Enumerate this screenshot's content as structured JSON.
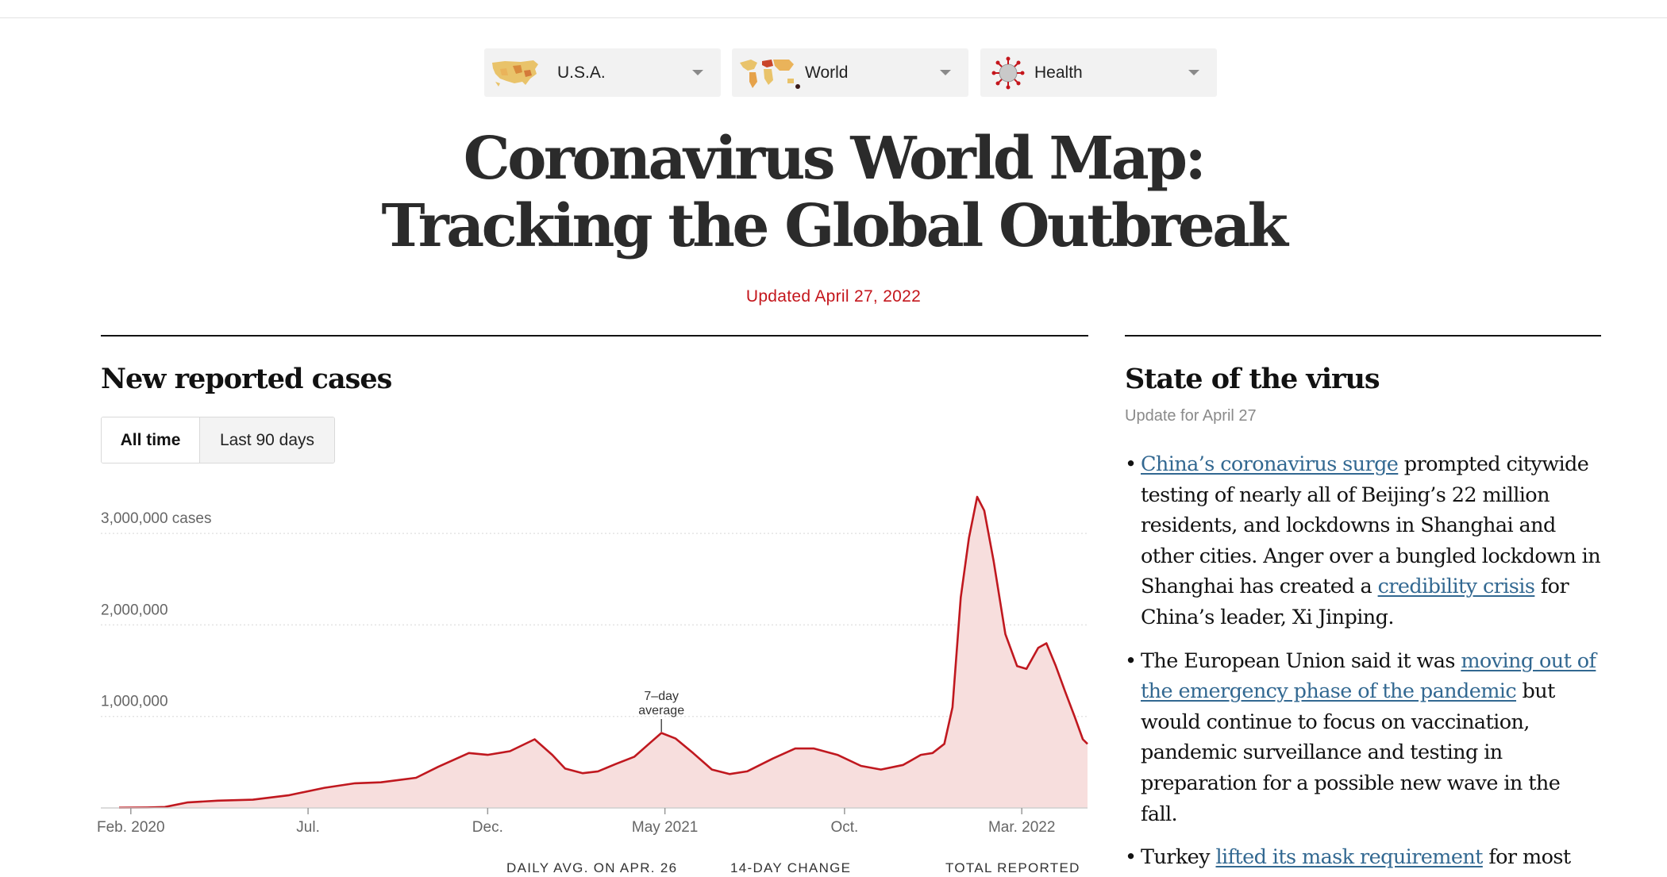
{
  "nav": {
    "items": [
      {
        "label": "U.S.A.",
        "icon": "usa-map-icon"
      },
      {
        "label": "World",
        "icon": "world-map-icon"
      },
      {
        "label": "Health",
        "icon": "virus-icon"
      }
    ]
  },
  "headline": {
    "line1": "Coronavirus World Map:",
    "line2": "Tracking the Global Outbreak"
  },
  "updated": "Updated April 27, 2022",
  "colors": {
    "accent_red": "#c4161c",
    "chart_line": "#c0181f",
    "chart_fill": "#f7dedd",
    "link_blue": "#326891"
  },
  "cases_section": {
    "title": "New reported cases",
    "tabs": [
      "All time",
      "Last 90 days"
    ],
    "active_tab": "All time",
    "footer_labels": [
      "DAILY AVG. ON APR. 26",
      "14-DAY CHANGE",
      "TOTAL REPORTED"
    ]
  },
  "chart_data": {
    "type": "area",
    "title": "",
    "xlabel": "",
    "ylabel": "",
    "ylim": [
      0,
      3400000
    ],
    "yticks": [
      {
        "value": 1000000,
        "label": "1,000,000"
      },
      {
        "value": 2000000,
        "label": "2,000,000"
      },
      {
        "value": 3000000,
        "label": "3,000,000 cases"
      }
    ],
    "xticks": [
      {
        "date": "2020-02-01",
        "label": "Feb. 2020"
      },
      {
        "date": "2020-07-01",
        "label": "Jul."
      },
      {
        "date": "2020-12-01",
        "label": "Dec."
      },
      {
        "date": "2021-05-01",
        "label": "May 2021"
      },
      {
        "date": "2021-10-01",
        "label": "Oct."
      },
      {
        "date": "2022-03-01",
        "label": "Mar. 2022"
      }
    ],
    "grid": true,
    "annotation": {
      "text_line1": "7–day",
      "text_line2": "average",
      "date": "2021-04-28"
    },
    "series": [
      {
        "x": [
          "2020-01-22",
          "2020-02-15",
          "2020-03-01",
          "2020-03-20",
          "2020-04-15",
          "2020-05-15",
          "2020-06-15",
          "2020-07-15",
          "2020-08-10",
          "2020-09-01",
          "2020-10-01",
          "2020-10-20",
          "2020-11-15",
          "2020-12-01",
          "2020-12-20",
          "2021-01-10",
          "2021-01-25",
          "2021-02-05",
          "2021-02-20",
          "2021-03-05",
          "2021-03-20",
          "2021-04-05",
          "2021-04-20",
          "2021-04-28",
          "2021-05-10",
          "2021-05-25",
          "2021-06-10",
          "2021-06-25",
          "2021-07-10",
          "2021-08-01",
          "2021-08-20",
          "2021-09-05",
          "2021-09-25",
          "2021-10-15",
          "2021-11-01",
          "2021-11-20",
          "2021-12-05",
          "2021-12-15",
          "2021-12-25",
          "2022-01-01",
          "2022-01-08",
          "2022-01-15",
          "2022-01-22",
          "2022-01-28",
          "2022-02-05",
          "2022-02-15",
          "2022-02-25",
          "2022-03-05",
          "2022-03-15",
          "2022-03-22",
          "2022-03-30",
          "2022-04-07",
          "2022-04-15",
          "2022-04-22",
          "2022-04-26"
        ],
        "values": [
          3000,
          5000,
          10000,
          60000,
          80000,
          90000,
          140000,
          220000,
          270000,
          280000,
          330000,
          450000,
          600000,
          580000,
          620000,
          750000,
          580000,
          430000,
          380000,
          400000,
          480000,
          560000,
          730000,
          820000,
          760000,
          600000,
          420000,
          370000,
          400000,
          540000,
          650000,
          650000,
          580000,
          460000,
          420000,
          470000,
          580000,
          600000,
          700000,
          1100000,
          2300000,
          2950000,
          3400000,
          3250000,
          2700000,
          1900000,
          1550000,
          1520000,
          1750000,
          1800000,
          1550000,
          1270000,
          1000000,
          750000,
          700000
        ]
      }
    ]
  },
  "state_section": {
    "title": "State of the virus",
    "update_for": "Update for April 27",
    "bullets": [
      {
        "parts": [
          {
            "text": "China’s coronavirus surge",
            "link": true
          },
          {
            "text": " prompted citywide testing of nearly all of Beijing’s 22 million residents, and lockdowns in Shanghai and other cities. Anger over a bungled lockdown in Shanghai has created a ",
            "link": false
          },
          {
            "text": "credibility crisis",
            "link": true
          },
          {
            "text": " for China’s leader, Xi Jinping.",
            "link": false
          }
        ]
      },
      {
        "parts": [
          {
            "text": "The European Union said it was ",
            "link": false
          },
          {
            "text": "moving out of the emergency phase of the pandemic",
            "link": true
          },
          {
            "text": " but would continue to focus on vaccination, pandemic surveillance and testing in preparation for a possible new wave in the fall.",
            "link": false
          }
        ]
      },
      {
        "parts": [
          {
            "text": "Turkey ",
            "link": false
          },
          {
            "text": "lifted its mask requirement",
            "link": true
          },
          {
            "text": " for most indoor settings, including schools.",
            "link": false
          }
        ]
      }
    ]
  }
}
